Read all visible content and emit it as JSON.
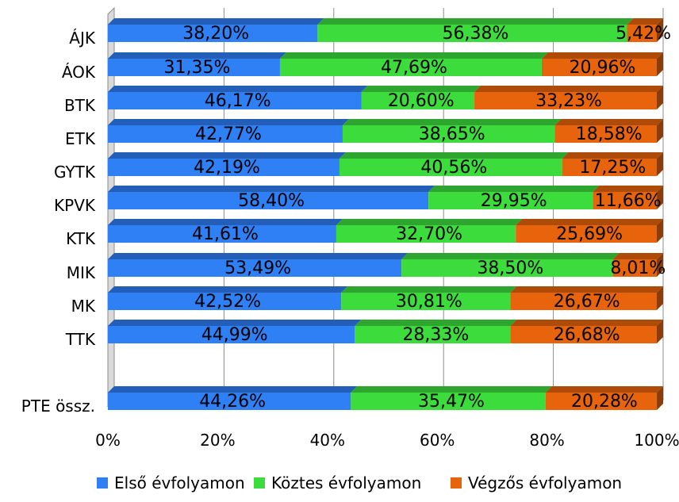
{
  "chart_data": {
    "type": "bar",
    "orientation": "horizontal",
    "stacked": "percent",
    "categories": [
      "ÁJK",
      "ÁOK",
      "BTK",
      "ETK",
      "GYTK",
      "KPVK",
      "KTK",
      "MIK",
      "MK",
      "TTK",
      "PTE össz."
    ],
    "series": [
      {
        "name": "Első évfolyamon",
        "color": "#2f7ff5",
        "values": [
          38.2,
          31.35,
          46.17,
          42.77,
          42.19,
          58.4,
          41.61,
          53.49,
          42.52,
          44.99,
          44.26
        ],
        "labels": [
          "38,20%",
          "31,35%",
          "46,17%",
          "42,77%",
          "42,19%",
          "58,40%",
          "41,61%",
          "53,49%",
          "42,52%",
          "44,99%",
          "44,26%"
        ]
      },
      {
        "name": "Köztes évfolyamon",
        "color": "#3ddc3d",
        "values": [
          56.38,
          47.69,
          20.6,
          38.65,
          40.56,
          29.95,
          32.7,
          38.5,
          30.81,
          28.33,
          35.47
        ],
        "labels": [
          "56,38%",
          "47,69%",
          "20,60%",
          "38,65%",
          "40,56%",
          "29,95%",
          "32,70%",
          "38,50%",
          "30,81%",
          "28,33%",
          "35,47%"
        ]
      },
      {
        "name": "Végzős évfolyamon",
        "color": "#e8640c",
        "values": [
          5.42,
          20.96,
          33.23,
          18.58,
          17.25,
          11.66,
          25.69,
          8.01,
          26.67,
          26.68,
          20.28
        ],
        "labels": [
          "5,42%",
          "20,96%",
          "33,23%",
          "18,58%",
          "17,25%",
          "11,66%",
          "25,69%",
          "8,01%",
          "26,67%",
          "26,68%",
          "20,28%"
        ]
      }
    ],
    "xlim": [
      0,
      100
    ],
    "xticks": [
      "0%",
      "20%",
      "40%",
      "60%",
      "80%",
      "100%"
    ],
    "grid": true,
    "legend": "bottom",
    "style": "3d"
  }
}
